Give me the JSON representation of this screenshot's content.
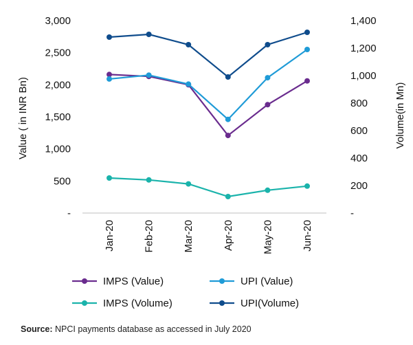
{
  "chart_data": {
    "type": "line",
    "categories": [
      "Jan-20",
      "Feb-20",
      "Mar-20",
      "Apr-20",
      "May-20",
      "Jun-20"
    ],
    "ylabel": "Value ( in INR Bn)",
    "y2label": "Volume(in Mn)",
    "ylim": [
      0,
      3000
    ],
    "y2lim": [
      0,
      1400
    ],
    "y_ticks": [
      "-",
      "500",
      "1,000",
      "1,500",
      "2,000",
      "2,500",
      "3,000"
    ],
    "y2_ticks": [
      "-",
      "200",
      "400",
      "600",
      "800",
      "1,000",
      "1,200",
      "1,400"
    ],
    "grid": false,
    "legend_position": "bottom",
    "series": [
      {
        "name": "IMPS (Value)",
        "axis": "left",
        "color": "#6a2c8e",
        "values": [
          2160,
          2130,
          2000,
          1210,
          1690,
          2060
        ]
      },
      {
        "name": "UPI (Value)",
        "axis": "left",
        "color": "#1f9bd7",
        "values": [
          2090,
          2150,
          2010,
          1460,
          2110,
          2550
        ]
      },
      {
        "name": "IMPS (Volume)",
        "axis": "right",
        "color": "#1ab3ab",
        "values": [
          255,
          241,
          212,
          120,
          166,
          196
        ]
      },
      {
        "name": "UPI(Volume)",
        "axis": "right",
        "color": "#0f4c8c",
        "values": [
          1280,
          1300,
          1225,
          990,
          1225,
          1315
        ]
      }
    ]
  },
  "source": {
    "label": "Source:",
    "text": " NPCI payments database as accessed in July 2020"
  }
}
